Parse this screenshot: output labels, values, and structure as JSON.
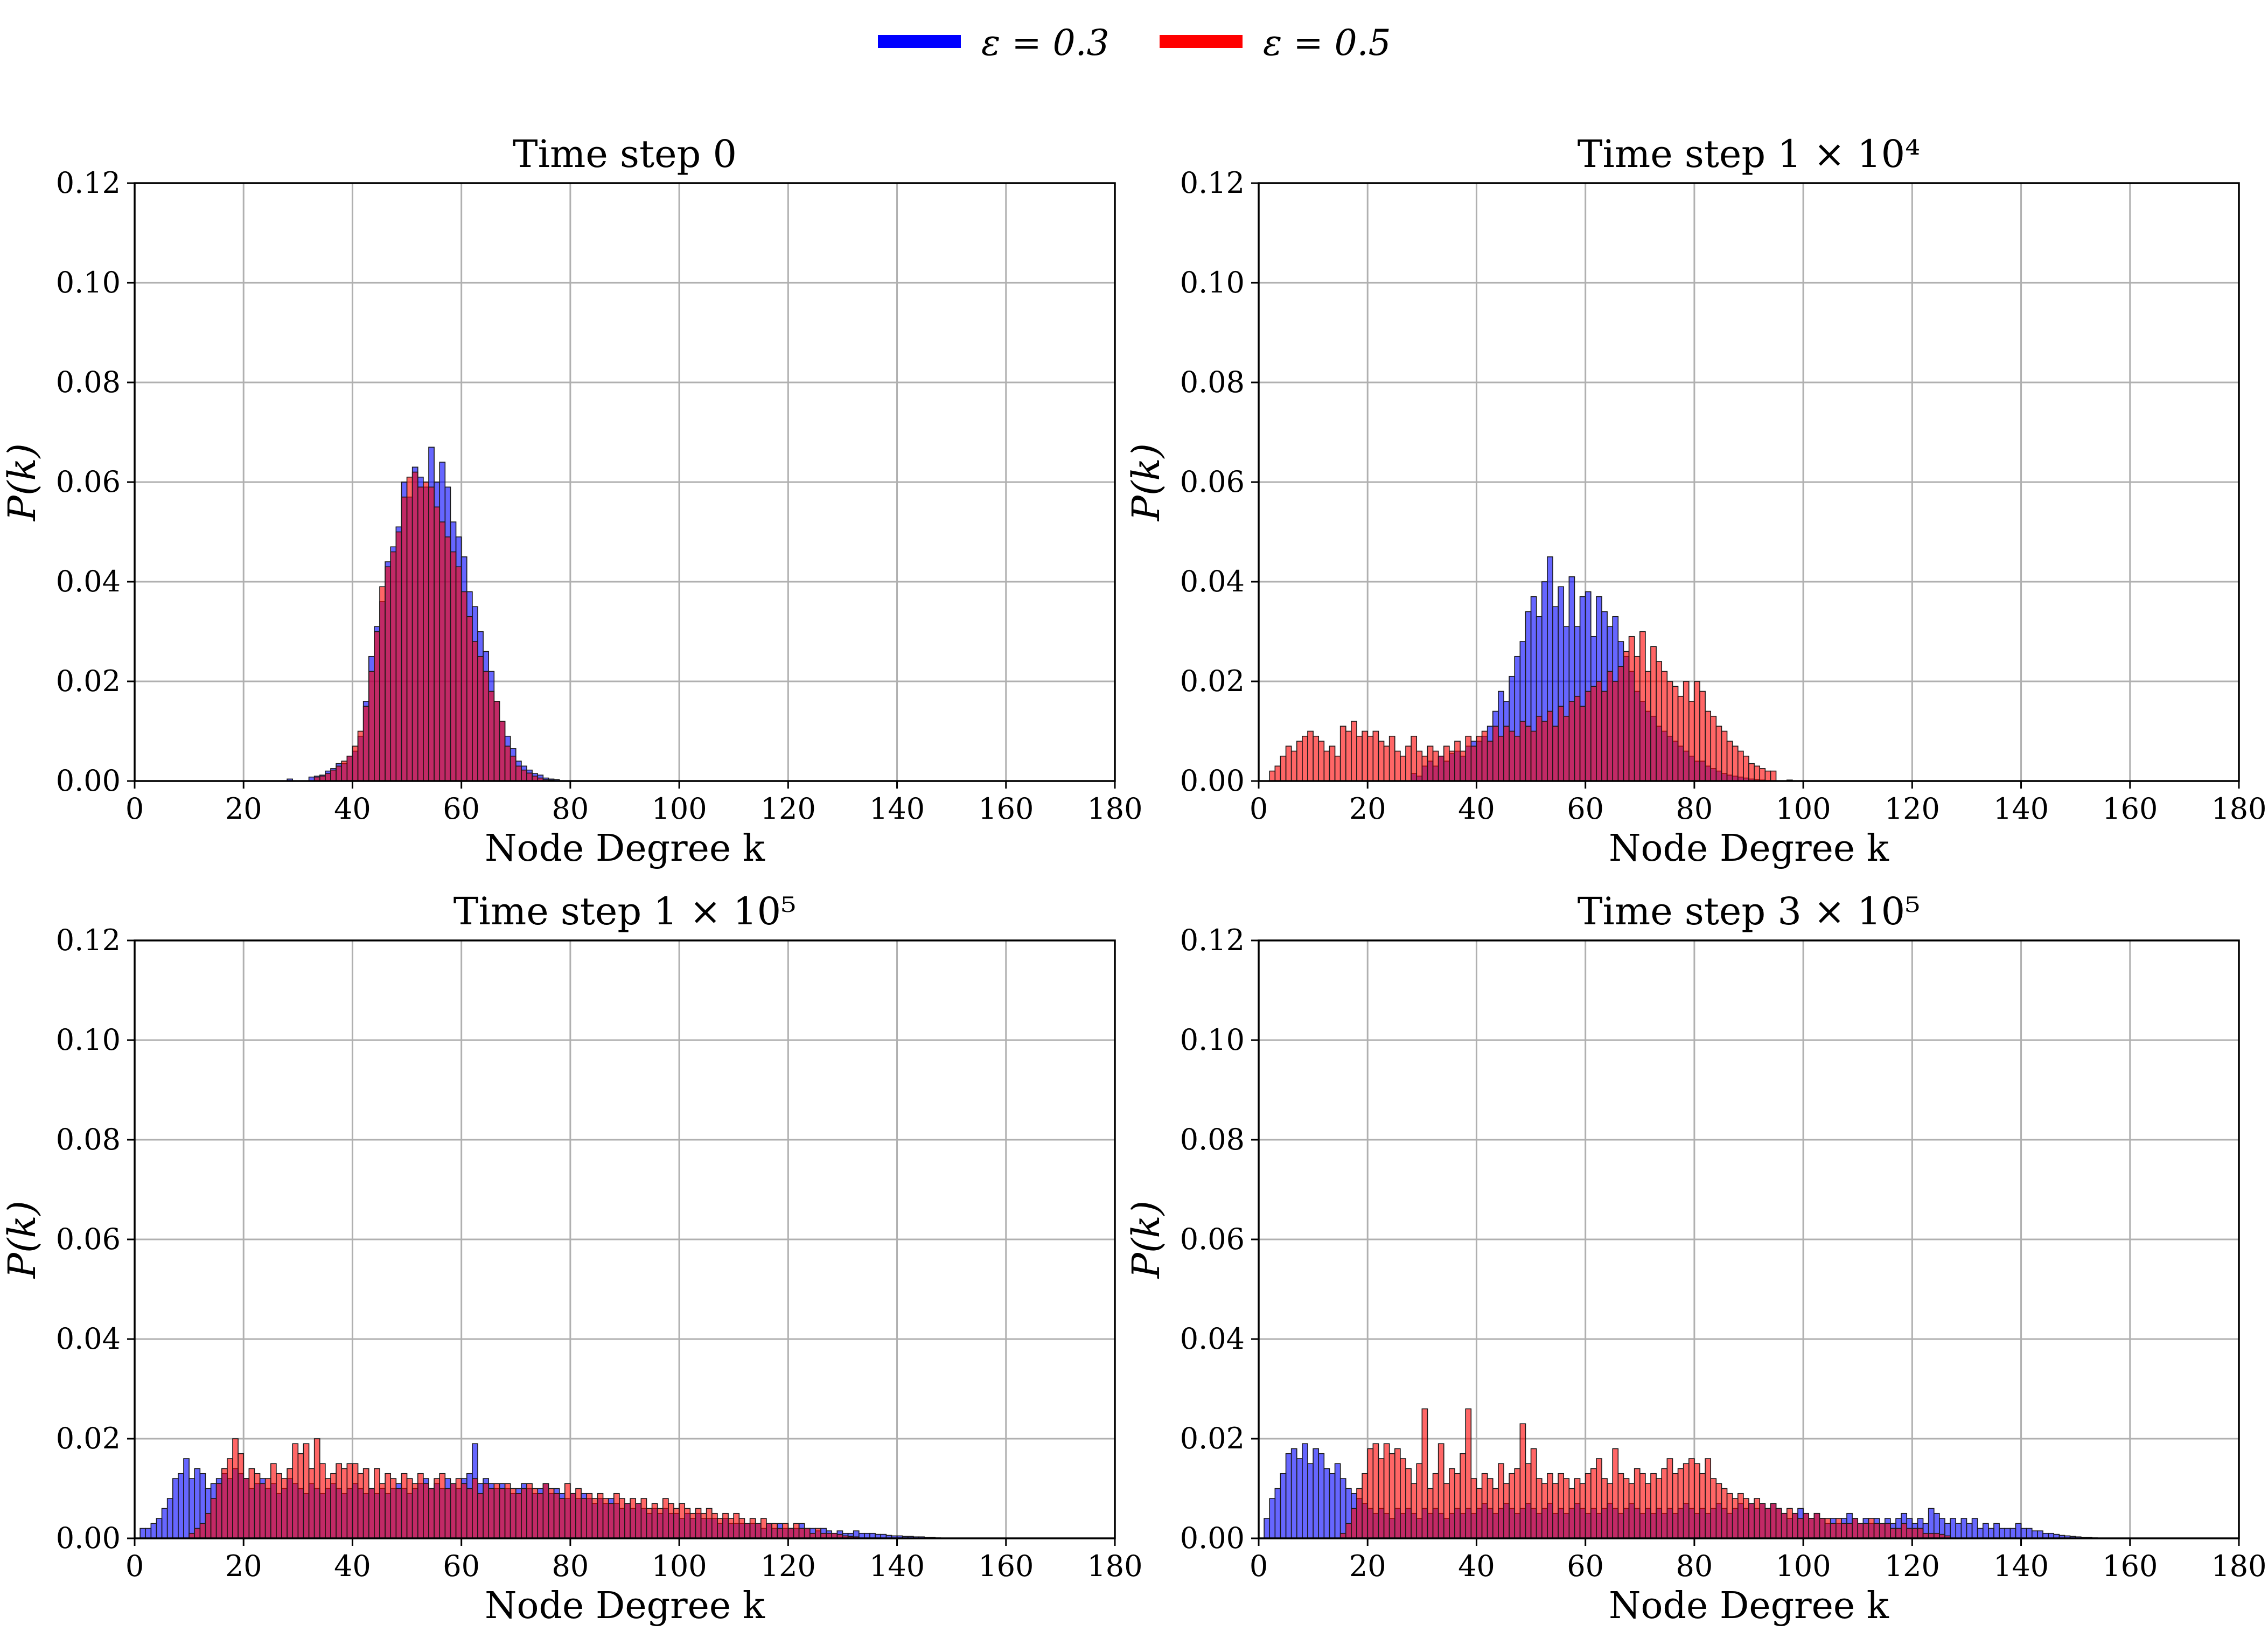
{
  "figure": {
    "legend": [
      {
        "label": "ε = 0.3",
        "color": "#0000ff"
      },
      {
        "label": "ε = 0.5",
        "color": "#ff0000"
      }
    ]
  },
  "chart_data": [
    {
      "type": "bar",
      "title": "Time step 0",
      "xlabel": "Node Degree k",
      "ylabel": "P(k)",
      "xlim": [
        0,
        180
      ],
      "ylim": [
        0,
        0.12
      ],
      "xticks": [
        0,
        20,
        40,
        60,
        80,
        100,
        120,
        140,
        160,
        180
      ],
      "yticks": [
        "0.00",
        "0.02",
        "0.04",
        "0.06",
        "0.08",
        "0.10",
        "0.12"
      ],
      "grid": true,
      "bin_width": 1,
      "series": [
        {
          "name": "ε = 0.3",
          "color": "#0000ff",
          "x_start": 28,
          "values": [
            0.0004,
            0,
            0,
            0,
            0.0008,
            0.001,
            0.0012,
            0.002,
            0.0025,
            0.0035,
            0.0035,
            0.005,
            0.006,
            0.009,
            0.016,
            0.025,
            0.031,
            0.036,
            0.044,
            0.047,
            0.051,
            0.06,
            0.057,
            0.063,
            0.061,
            0.059,
            0.067,
            0.06,
            0.064,
            0.059,
            0.052,
            0.049,
            0.045,
            0.038,
            0.035,
            0.03,
            0.026,
            0.022,
            0.016,
            0.012,
            0.009,
            0.0065,
            0.004,
            0.003,
            0.0022,
            0.0015,
            0.0012,
            0.0006,
            0.0004,
            0.0003
          ]
        },
        {
          "name": "ε = 0.5",
          "color": "#ff0000",
          "x_start": 28,
          "values": [
            0,
            0,
            0,
            0,
            0,
            0.0008,
            0.001,
            0.0015,
            0.0022,
            0.003,
            0.004,
            0.005,
            0.007,
            0.01,
            0.015,
            0.022,
            0.03,
            0.039,
            0.043,
            0.046,
            0.05,
            0.057,
            0.061,
            0.062,
            0.059,
            0.06,
            0.059,
            0.055,
            0.052,
            0.049,
            0.046,
            0.043,
            0.038,
            0.033,
            0.028,
            0.025,
            0.022,
            0.018,
            0.016,
            0.012,
            0.007,
            0.005,
            0.003,
            0.0022,
            0.0016,
            0.001,
            0.0006,
            0.0003,
            0.0002,
            0
          ]
        }
      ]
    },
    {
      "type": "bar",
      "title": "Time step 1 × 10⁴",
      "xlabel": "Node Degree k",
      "ylabel": "P(k)",
      "xlim": [
        0,
        180
      ],
      "ylim": [
        0,
        0.12
      ],
      "xticks": [
        0,
        20,
        40,
        60,
        80,
        100,
        120,
        140,
        160,
        180
      ],
      "yticks": [
        "0.00",
        "0.02",
        "0.04",
        "0.06",
        "0.08",
        "0.10",
        "0.12"
      ],
      "grid": true,
      "bin_width": 1,
      "series": [
        {
          "name": "ε = 0.3",
          "color": "#0000ff",
          "x_start": 28,
          "values": [
            0.0015,
            0.001,
            0.003,
            0.004,
            0.003,
            0.005,
            0.004,
            0.0055,
            0.006,
            0.005,
            0.007,
            0.008,
            0.008,
            0.009,
            0.011,
            0.014,
            0.018,
            0.016,
            0.021,
            0.025,
            0.028,
            0.034,
            0.037,
            0.033,
            0.04,
            0.045,
            0.035,
            0.039,
            0.031,
            0.041,
            0.031,
            0.037,
            0.038,
            0.029,
            0.037,
            0.034,
            0.031,
            0.033,
            0.028,
            0.025,
            0.022,
            0.018,
            0.016,
            0.014,
            0.013,
            0.011,
            0.01,
            0.009,
            0.008,
            0.007,
            0.006,
            0.005,
            0.004,
            0.004,
            0.003,
            0.0025,
            0.002,
            0.0015,
            0.0012,
            0.001,
            0.0008,
            0.0006,
            0.0004,
            0.0003,
            0.0002,
            0.0001,
            0,
            0,
            0,
            0.0002
          ]
        },
        {
          "name": "ε = 0.5",
          "color": "#ff0000",
          "x_start": 2,
          "values": [
            0.002,
            0.003,
            0.005,
            0.007,
            0.006,
            0.008,
            0.009,
            0.01,
            0.009,
            0.008,
            0.006,
            0.007,
            0.005,
            0.011,
            0.01,
            0.012,
            0.009,
            0.01,
            0.009,
            0.01,
            0.008,
            0.007,
            0.009,
            0.006,
            0.005,
            0.007,
            0.009,
            0.006,
            0.005,
            0.007,
            0.006,
            0.005,
            0.007,
            0.006,
            0.008,
            0.006,
            0.009,
            0.007,
            0.009,
            0.01,
            0.008,
            0.011,
            0.009,
            0.011,
            0.01,
            0.009,
            0.012,
            0.011,
            0.01,
            0.013,
            0.012,
            0.014,
            0.011,
            0.015,
            0.013,
            0.016,
            0.017,
            0.015,
            0.018,
            0.019,
            0.02,
            0.018,
            0.022,
            0.02,
            0.023,
            0.026,
            0.029,
            0.025,
            0.03,
            0.022,
            0.027,
            0.024,
            0.022,
            0.02,
            0.019,
            0.017,
            0.02,
            0.016,
            0.02,
            0.018,
            0.014,
            0.013,
            0.011,
            0.01,
            0.008,
            0.007,
            0.006,
            0.005,
            0.0035,
            0.003,
            0.0025,
            0.002,
            0.002
          ]
        }
      ]
    },
    {
      "type": "bar",
      "title": "Time step 1 × 10⁵",
      "xlabel": "Node Degree k",
      "ylabel": "P(k)",
      "xlim": [
        0,
        180
      ],
      "ylim": [
        0,
        0.12
      ],
      "xticks": [
        0,
        20,
        40,
        60,
        80,
        100,
        120,
        140,
        160,
        180
      ],
      "yticks": [
        "0.00",
        "0.02",
        "0.04",
        "0.06",
        "0.08",
        "0.10",
        "0.12"
      ],
      "grid": true,
      "bin_width": 1,
      "series": [
        {
          "name": "ε = 0.3",
          "color": "#0000ff",
          "x_start": 1,
          "values": [
            0.002,
            0.002,
            0.003,
            0.004,
            0.006,
            0.008,
            0.012,
            0.013,
            0.016,
            0.012,
            0.014,
            0.013,
            0.01,
            0.011,
            0.012,
            0.013,
            0.012,
            0.014,
            0.013,
            0.012,
            0.01,
            0.011,
            0.012,
            0.01,
            0.011,
            0.009,
            0.01,
            0.012,
            0.011,
            0.01,
            0.009,
            0.011,
            0.01,
            0.009,
            0.01,
            0.011,
            0.01,
            0.009,
            0.01,
            0.011,
            0.01,
            0.009,
            0.01,
            0.009,
            0.01,
            0.009,
            0.01,
            0.011,
            0.01,
            0.009,
            0.01,
            0.011,
            0.012,
            0.01,
            0.011,
            0.01,
            0.012,
            0.011,
            0.01,
            0.012,
            0.013,
            0.019,
            0.011,
            0.012,
            0.011,
            0.01,
            0.011,
            0.01,
            0.009,
            0.01,
            0.011,
            0.01,
            0.009,
            0.01,
            0.011,
            0.009,
            0.01,
            0.009,
            0.008,
            0.009,
            0.008,
            0.009,
            0.008,
            0.007,
            0.008,
            0.007,
            0.008,
            0.007,
            0.006,
            0.007,
            0.006,
            0.007,
            0.006,
            0.005,
            0.006,
            0.005,
            0.006,
            0.005,
            0.005,
            0.004,
            0.005,
            0.004,
            0.005,
            0.004,
            0.004,
            0.004,
            0.003,
            0.004,
            0.003,
            0.003,
            0.003,
            0.003,
            0.003,
            0.003,
            0.002,
            0.003,
            0.002,
            0.003,
            0.002,
            0.002,
            0.002,
            0.003,
            0.002,
            0.002,
            0.0015,
            0.002,
            0.0015,
            0.001,
            0.0015,
            0.001,
            0.001,
            0.0015,
            0.001,
            0.001,
            0.001,
            0.0008,
            0.0008,
            0.0006,
            0.0005,
            0.0005,
            0.0004,
            0.0004,
            0.0003,
            0.0003,
            0.0002,
            0.0002,
            0.0001
          ]
        },
        {
          "name": "ε = 0.5",
          "color": "#ff0000",
          "x_start": 10,
          "values": [
            0.001,
            0.002,
            0.003,
            0.005,
            0.008,
            0.011,
            0.014,
            0.016,
            0.02,
            0.017,
            0.012,
            0.014,
            0.013,
            0.011,
            0.012,
            0.015,
            0.013,
            0.012,
            0.014,
            0.019,
            0.017,
            0.019,
            0.014,
            0.02,
            0.015,
            0.012,
            0.013,
            0.015,
            0.014,
            0.015,
            0.015,
            0.013,
            0.014,
            0.01,
            0.014,
            0.011,
            0.013,
            0.012,
            0.01,
            0.013,
            0.012,
            0.011,
            0.013,
            0.011,
            0.01,
            0.012,
            0.013,
            0.01,
            0.011,
            0.012,
            0.011,
            0.01,
            0.012,
            0.009,
            0.011,
            0.01,
            0.011,
            0.01,
            0.011,
            0.01,
            0.009,
            0.01,
            0.011,
            0.01,
            0.009,
            0.011,
            0.01,
            0.009,
            0.008,
            0.011,
            0.009,
            0.01,
            0.008,
            0.009,
            0.008,
            0.009,
            0.008,
            0.007,
            0.009,
            0.008,
            0.007,
            0.008,
            0.007,
            0.008,
            0.006,
            0.007,
            0.006,
            0.008,
            0.007,
            0.006,
            0.007,
            0.006,
            0.005,
            0.006,
            0.005,
            0.006,
            0.005,
            0.004,
            0.005,
            0.004,
            0.005,
            0.004,
            0.003,
            0.004,
            0.003,
            0.004,
            0.003,
            0.003,
            0.002,
            0.003,
            0.002,
            0.003,
            0.002,
            0.002,
            0.001,
            0.002,
            0.001,
            0.001,
            0.001,
            0.0008,
            0.0005,
            0.0004,
            0.0003
          ]
        }
      ]
    },
    {
      "type": "bar",
      "title": "Time step 3 × 10⁵",
      "xlabel": "Node Degree k",
      "ylabel": "P(k)",
      "xlim": [
        0,
        180
      ],
      "ylim": [
        0,
        0.12
      ],
      "xticks": [
        0,
        20,
        40,
        60,
        80,
        100,
        120,
        140,
        160,
        180
      ],
      "yticks": [
        "0.00",
        "0.02",
        "0.04",
        "0.06",
        "0.08",
        "0.10",
        "0.12"
      ],
      "grid": true,
      "bin_width": 1,
      "series": [
        {
          "name": "ε = 0.3",
          "color": "#0000ff",
          "x_start": 1,
          "values": [
            0.004,
            0.008,
            0.01,
            0.013,
            0.017,
            0.018,
            0.016,
            0.019,
            0.015,
            0.018,
            0.017,
            0.014,
            0.013,
            0.015,
            0.012,
            0.01,
            0.009,
            0.008,
            0.007,
            0.006,
            0.005,
            0.006,
            0.005,
            0.004,
            0.006,
            0.005,
            0.006,
            0.005,
            0.004,
            0.006,
            0.005,
            0.006,
            0.005,
            0.004,
            0.005,
            0.006,
            0.005,
            0.006,
            0.005,
            0.006,
            0.007,
            0.006,
            0.005,
            0.006,
            0.007,
            0.006,
            0.005,
            0.006,
            0.007,
            0.006,
            0.005,
            0.006,
            0.007,
            0.005,
            0.006,
            0.005,
            0.006,
            0.007,
            0.006,
            0.005,
            0.006,
            0.005,
            0.006,
            0.007,
            0.006,
            0.005,
            0.006,
            0.007,
            0.006,
            0.005,
            0.006,
            0.005,
            0.006,
            0.005,
            0.006,
            0.005,
            0.006,
            0.007,
            0.006,
            0.005,
            0.006,
            0.005,
            0.006,
            0.007,
            0.006,
            0.005,
            0.006,
            0.007,
            0.006,
            0.007,
            0.006,
            0.007,
            0.006,
            0.007,
            0.006,
            0.005,
            0.004,
            0.005,
            0.006,
            0.005,
            0.004,
            0.005,
            0.004,
            0.003,
            0.004,
            0.003,
            0.004,
            0.005,
            0.004,
            0.003,
            0.004,
            0.003,
            0.004,
            0.003,
            0.004,
            0.003,
            0.004,
            0.005,
            0.004,
            0.003,
            0.004,
            0.003,
            0.006,
            0.005,
            0.004,
            0.003,
            0.004,
            0.003,
            0.004,
            0.003,
            0.004,
            0.002,
            0.003,
            0.002,
            0.003,
            0.002,
            0.002,
            0.002,
            0.003,
            0.002,
            0.002,
            0.0015,
            0.0015,
            0.001,
            0.001,
            0.0008,
            0.0006,
            0.0005,
            0.0004,
            0.0003,
            0.0002,
            0.0002,
            0.0001
          ]
        },
        {
          "name": "ε = 0.5",
          "color": "#ff0000",
          "x_start": 15,
          "values": [
            0.001,
            0.003,
            0.006,
            0.01,
            0.013,
            0.018,
            0.019,
            0.016,
            0.019,
            0.017,
            0.018,
            0.016,
            0.014,
            0.011,
            0.015,
            0.026,
            0.01,
            0.013,
            0.019,
            0.011,
            0.014,
            0.013,
            0.017,
            0.026,
            0.012,
            0.01,
            0.013,
            0.012,
            0.01,
            0.015,
            0.011,
            0.013,
            0.014,
            0.023,
            0.015,
            0.018,
            0.012,
            0.011,
            0.013,
            0.011,
            0.013,
            0.012,
            0.01,
            0.012,
            0.011,
            0.013,
            0.014,
            0.016,
            0.012,
            0.011,
            0.018,
            0.013,
            0.012,
            0.011,
            0.014,
            0.013,
            0.011,
            0.013,
            0.012,
            0.014,
            0.016,
            0.013,
            0.014,
            0.015,
            0.016,
            0.015,
            0.013,
            0.016,
            0.012,
            0.011,
            0.01,
            0.009,
            0.008,
            0.009,
            0.008,
            0.007,
            0.008,
            0.007,
            0.006,
            0.007,
            0.006,
            0.005,
            0.006,
            0.005,
            0.004,
            0.005,
            0.004,
            0.005,
            0.004,
            0.004,
            0.003,
            0.004,
            0.003,
            0.003,
            0.004,
            0.003,
            0.003,
            0.004,
            0.003,
            0.003,
            0.003,
            0.002,
            0.002,
            0.003,
            0.002,
            0.002,
            0.002,
            0.001,
            0.001,
            0.001,
            0.0008,
            0.0005
          ]
        }
      ]
    }
  ]
}
